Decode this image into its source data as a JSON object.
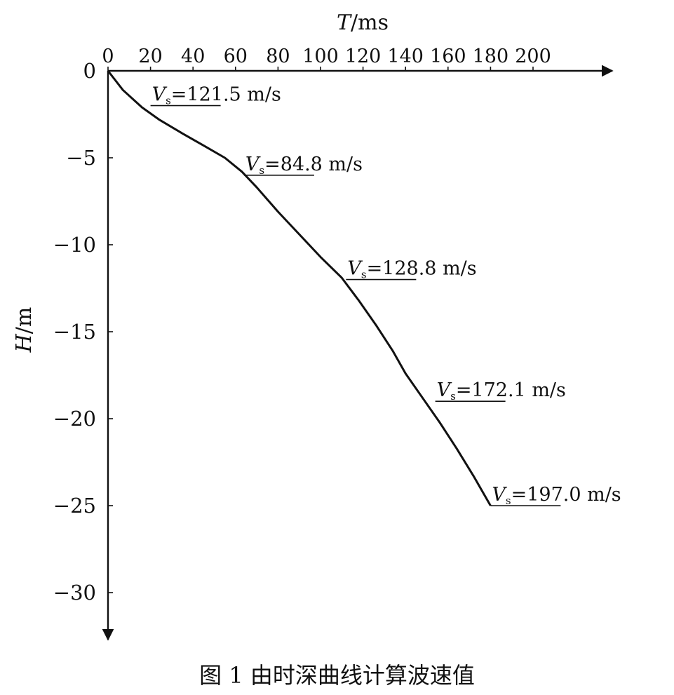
{
  "caption": "图 1  由时深曲线计算波速值",
  "chart_data": {
    "type": "line",
    "x_axis": {
      "label_var": "T",
      "label_unit": "/ms",
      "ticks": [
        0,
        20,
        40,
        60,
        80,
        100,
        120,
        140,
        160,
        180,
        200
      ],
      "range": [
        0,
        230
      ],
      "position": "top"
    },
    "y_axis": {
      "label_var": "H",
      "label_unit": "/m",
      "ticks": [
        0,
        -5,
        -10,
        -15,
        -20,
        -25,
        -30
      ],
      "range": [
        0,
        -32.5
      ]
    },
    "series": [
      {
        "x": [
          0,
          7,
          16,
          24,
          35,
          45,
          55,
          63,
          70,
          80,
          90,
          100,
          110,
          118,
          126,
          134,
          140,
          148,
          156,
          164,
          172,
          180
        ],
        "y": [
          0,
          -1.1,
          -2.1,
          -2.8,
          -3.6,
          -4.3,
          -5.0,
          -5.8,
          -6.7,
          -8.1,
          -9.4,
          -10.7,
          -11.9,
          -13.2,
          -14.6,
          -16.1,
          -17.4,
          -18.8,
          -20.2,
          -21.7,
          -23.3,
          -25.0
        ]
      }
    ],
    "annotations": [
      {
        "var": "V",
        "sub": "s",
        "text": "=121.5 m/s",
        "x": 20,
        "y": -2.0
      },
      {
        "var": "V",
        "sub": "s",
        "text": "=84.8 m/s",
        "x": 64,
        "y": -6.0
      },
      {
        "var": "V",
        "sub": "s",
        "text": "=128.8 m/s",
        "x": 112,
        "y": -12.0
      },
      {
        "var": "V",
        "sub": "s",
        "text": "=172.1 m/s",
        "x": 154,
        "y": -19.0
      },
      {
        "var": "V",
        "sub": "s",
        "text": "=197.0 m/s",
        "x": 180,
        "y": -25.0
      }
    ]
  }
}
